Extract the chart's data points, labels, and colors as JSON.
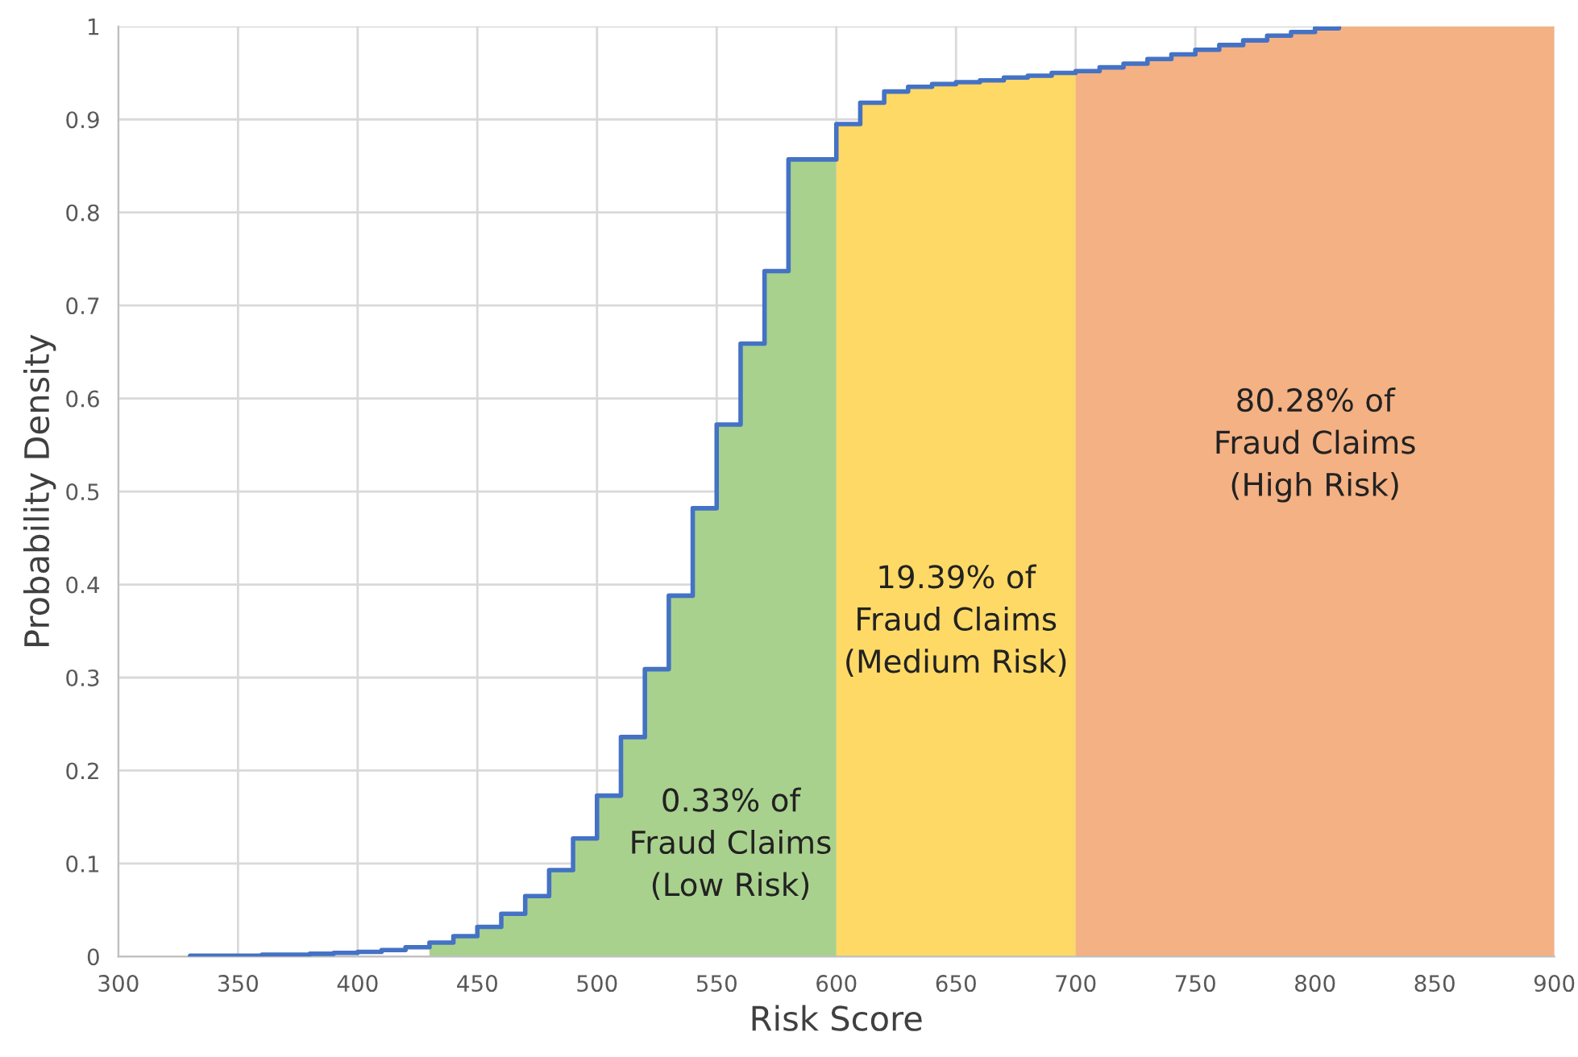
{
  "chart_data": {
    "type": "step",
    "xlabel": "Risk Score",
    "ylabel": "Probability Density",
    "x": [
      330,
      340,
      350,
      360,
      370,
      380,
      390,
      400,
      410,
      420,
      430,
      440,
      450,
      460,
      470,
      480,
      490,
      500,
      510,
      520,
      530,
      540,
      550,
      560,
      570,
      580,
      590,
      600,
      610,
      620,
      630,
      640,
      650,
      660,
      670,
      680,
      690,
      700,
      710,
      720,
      730,
      740,
      750,
      760,
      770,
      780,
      790,
      800,
      810
    ],
    "series": [
      {
        "type": "area",
        "color": "#a9d18e",
        "x": [
          430,
          440,
          450,
          460,
          470,
          480,
          490,
          500,
          510,
          520,
          530,
          540,
          550,
          560,
          570,
          580,
          590,
          600
        ],
        "values": [
          0.015,
          0.022,
          0.032,
          0.046,
          0.065,
          0.093,
          0.127,
          0.173,
          0.236,
          0.309,
          0.388,
          0.482,
          0.572,
          0.659,
          0.737,
          0.857,
          0.857,
          0.857
        ]
      },
      {
        "type": "area",
        "color": "#ffd966",
        "x": [
          600,
          610,
          620,
          630,
          640,
          650,
          660,
          670,
          680,
          690,
          700
        ],
        "values": [
          0.895,
          0.918,
          0.93,
          0.935,
          0.938,
          0.94,
          0.942,
          0.945,
          0.947,
          0.95,
          0.95
        ]
      },
      {
        "type": "area",
        "color": "#f4b183",
        "x": [
          700,
          710,
          720,
          730,
          740,
          750,
          760,
          770,
          780,
          790,
          800,
          810,
          900
        ],
        "values": [
          0.952,
          0.956,
          0.96,
          0.965,
          0.97,
          0.975,
          0.98,
          0.985,
          0.99,
          0.994,
          0.998,
          1.0,
          1.0
        ]
      },
      {
        "color": "#4472c4",
        "values": [
          0.001,
          0.001,
          0.001,
          0.002,
          0.002,
          0.003,
          0.004,
          0.005,
          0.007,
          0.01,
          0.015,
          0.022,
          0.032,
          0.046,
          0.065,
          0.093,
          0.127,
          0.173,
          0.236,
          0.309,
          0.388,
          0.482,
          0.572,
          0.659,
          0.737,
          0.857,
          0.857,
          0.895,
          0.918,
          0.93,
          0.935,
          0.938,
          0.94,
          0.942,
          0.945,
          0.947,
          0.95,
          0.952,
          0.956,
          0.96,
          0.965,
          0.97,
          0.975,
          0.98,
          0.985,
          0.99,
          0.994,
          0.998,
          1.0
        ]
      }
    ],
    "annotations": [
      "0.33% of\nFraud Claims\n(Low Risk)",
      "19.39% of\nFraud Claims\n(Medium Risk)",
      "80.28% of\nFraud Claims\n(High Risk)"
    ],
    "xlim": [
      300,
      900
    ],
    "xticks": [
      300,
      350,
      400,
      450,
      500,
      550,
      600,
      650,
      700,
      750,
      800,
      850,
      900
    ],
    "ylim": [
      0,
      1
    ],
    "yticks": [
      0,
      0.1,
      0.2,
      0.3,
      0.4,
      0.5,
      0.6,
      0.7,
      0.8,
      0.9,
      1
    ],
    "grid": true
  }
}
